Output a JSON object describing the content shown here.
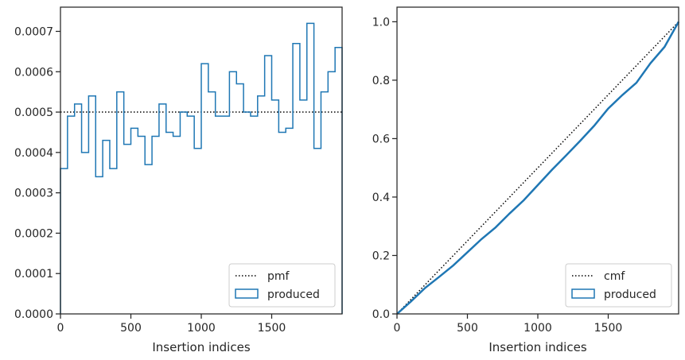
{
  "colors": {
    "produced": "#1f77b4",
    "reference": "#000000",
    "axes": "#262626",
    "legend_border": "#cccccc"
  },
  "chart_data": [
    {
      "type": "step",
      "xlabel": "Insertion indices",
      "ylabel": "",
      "xlim": [
        0,
        2000
      ],
      "ylim": [
        0,
        0.00076
      ],
      "x_ticks": [
        0,
        500,
        1000,
        1500
      ],
      "x_tick_labels": [
        "0",
        "500",
        "1000",
        "1500"
      ],
      "y_ticks": [
        0,
        0.0001,
        0.0002,
        0.0003,
        0.0004,
        0.0005,
        0.0006,
        0.0007
      ],
      "y_tick_labels": [
        "0.0000",
        "0.0001",
        "0.0002",
        "0.0003",
        "0.0004",
        "0.0005",
        "0.0006",
        "0.0007"
      ],
      "grid": false,
      "legend_position": "lower-right",
      "legend": [
        "pmf",
        "produced"
      ],
      "reference_line": {
        "name": "pmf",
        "style": "dotted",
        "y": 0.0005
      },
      "produced": {
        "name": "produced",
        "bin_edges": [
          0,
          50,
          100,
          150,
          200,
          250,
          300,
          350,
          400,
          450,
          500,
          550,
          600,
          650,
          700,
          750,
          800,
          850,
          900,
          950,
          1000,
          1050,
          1100,
          1150,
          1200,
          1250,
          1300,
          1350,
          1400,
          1450,
          1500,
          1550,
          1600,
          1650,
          1700,
          1750,
          1800,
          1850,
          1900,
          1950,
          2000
        ],
        "values": [
          0.00036,
          0.00049,
          0.00052,
          0.0004,
          0.00054,
          0.00034,
          0.00043,
          0.00036,
          0.00055,
          0.00042,
          0.00046,
          0.00044,
          0.00037,
          0.00044,
          0.00052,
          0.00045,
          0.00044,
          0.0005,
          0.00049,
          0.00041,
          0.00062,
          0.00055,
          0.00049,
          0.00049,
          0.0006,
          0.00057,
          0.0005,
          0.00049,
          0.00054,
          0.00064,
          0.00053,
          0.00045,
          0.00046,
          0.00067,
          0.00053,
          0.00072,
          0.00041,
          0.00055,
          0.0006,
          0.00066
        ]
      }
    },
    {
      "type": "line",
      "xlabel": "Insertion indices",
      "ylabel": "",
      "xlim": [
        0,
        2000
      ],
      "ylim": [
        0,
        1.05
      ],
      "x_ticks": [
        0,
        500,
        1000,
        1500
      ],
      "x_tick_labels": [
        "0",
        "500",
        "1000",
        "1500"
      ],
      "y_ticks": [
        0,
        0.2,
        0.4,
        0.6,
        0.8,
        1.0
      ],
      "y_tick_labels": [
        "0.0",
        "0.2",
        "0.4",
        "0.6",
        "0.8",
        "1.0"
      ],
      "grid": false,
      "legend_position": "lower-right",
      "legend": [
        "cmf",
        "produced"
      ],
      "reference_line": {
        "name": "cmf",
        "style": "dotted",
        "x": [
          0,
          2000
        ],
        "y": [
          0,
          1.0
        ]
      },
      "produced": {
        "name": "produced",
        "x": [
          0,
          100,
          200,
          300,
          400,
          500,
          600,
          700,
          800,
          900,
          1000,
          1100,
          1200,
          1300,
          1400,
          1500,
          1600,
          1700,
          1800,
          1900,
          2000
        ],
        "y": [
          0,
          0.043,
          0.089,
          0.127,
          0.166,
          0.211,
          0.256,
          0.296,
          0.344,
          0.389,
          0.441,
          0.493,
          0.542,
          0.592,
          0.644,
          0.703,
          0.749,
          0.791,
          0.858,
          0.914,
          1.0
        ]
      }
    }
  ]
}
